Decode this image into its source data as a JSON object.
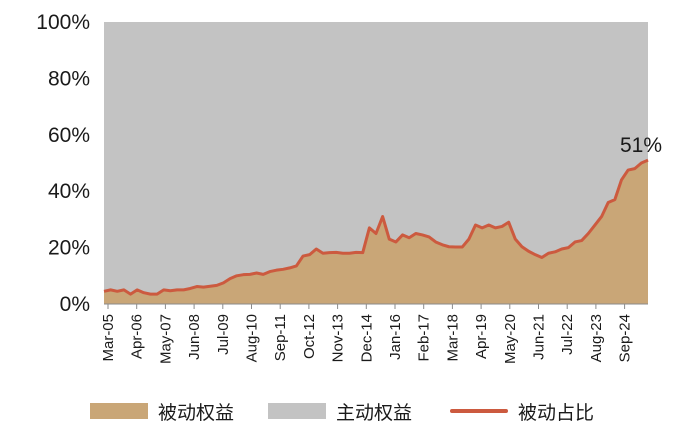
{
  "chart_data": {
    "type": "area",
    "y_ticks": [
      "0%",
      "20%",
      "40%",
      "60%",
      "80%",
      "100%"
    ],
    "ylim": [
      0,
      100
    ],
    "x_ticks": [
      "Mar-05",
      "Apr-06",
      "May-07",
      "Jun-08",
      "Jul-09",
      "Aug-10",
      "Sep-11",
      "Oct-12",
      "Nov-13",
      "Dec-14",
      "Jan-16",
      "Feb-17",
      "Mar-18",
      "Apr-19",
      "May-20",
      "Jun-21",
      "Jul-22",
      "Aug-23",
      "Sep-24"
    ],
    "series": [
      {
        "name": "被动权益",
        "kind": "area",
        "color": "#c9a677"
      },
      {
        "name": "主动权益",
        "kind": "area",
        "color": "#c3c3c3"
      },
      {
        "name": "被动占比",
        "kind": "line",
        "color": "#cc5a3f"
      }
    ],
    "passive_share_pct": [
      4.5,
      5,
      4.5,
      5,
      3.5,
      5,
      4,
      3.5,
      3.5,
      5,
      4.7,
      5,
      5,
      5.5,
      6.2,
      6,
      6.3,
      6.6,
      7.5,
      9,
      10,
      10.4,
      10.5,
      11,
      10.5,
      11.5,
      12,
      12.3,
      12.8,
      13.5,
      17,
      17.5,
      19.5,
      18,
      18.2,
      18.3,
      18,
      18,
      18.3,
      18.2,
      27,
      25,
      31,
      23,
      22,
      24.5,
      23.5,
      25,
      24.5,
      23.8,
      22,
      21,
      20.3,
      20.2,
      20.2,
      23,
      28,
      27,
      28,
      27,
      27.5,
      29,
      23,
      20.3,
      18.7,
      17.5,
      16.5,
      18,
      18.5,
      19.5,
      20,
      22,
      22.5,
      25,
      28,
      31,
      36,
      37,
      44,
      47.5,
      48,
      50,
      51
    ],
    "annotation": "51%"
  },
  "legend": {
    "passive_label": "被动权益",
    "active_label": "主动权益",
    "share_label": "被动占比"
  }
}
